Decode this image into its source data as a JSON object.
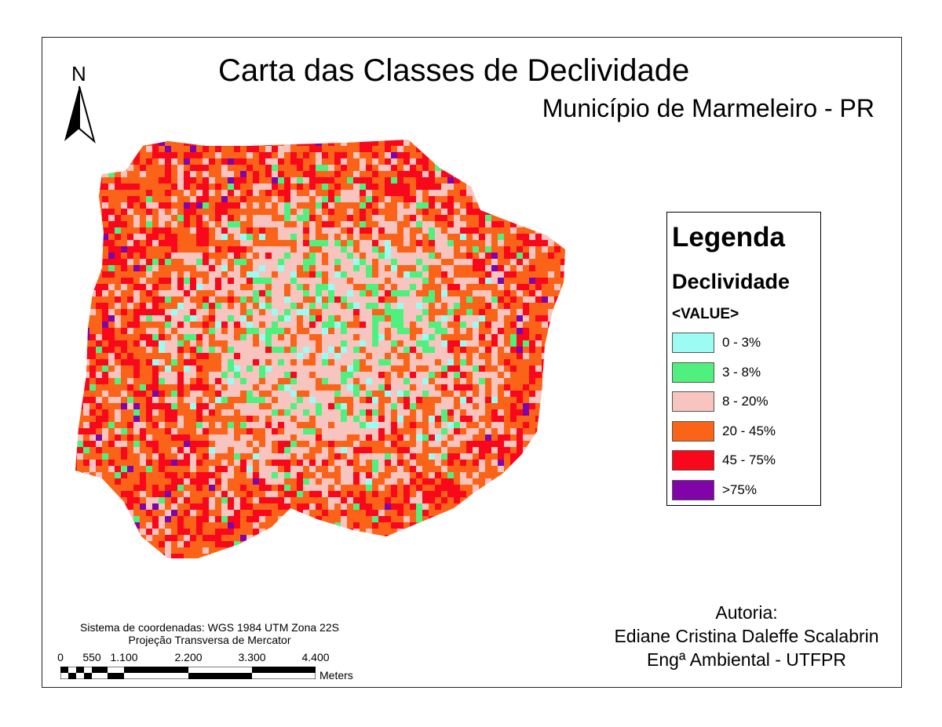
{
  "title": "Carta das Classes de Declividade",
  "subtitle": "Município de Marmeleiro - PR",
  "north_label": "N",
  "legend": {
    "heading": "Legenda",
    "layer": "Declividade",
    "field": "<VALUE>",
    "items": [
      {
        "label": "0 - 3%",
        "color": "#9cfcf4"
      },
      {
        "label": "3 - 8%",
        "color": "#50f07e"
      },
      {
        "label": "8 - 20%",
        "color": "#f8c4c0"
      },
      {
        "label": "20 - 45%",
        "color": "#fb6418"
      },
      {
        "label": "45 - 75%",
        "color": "#f8081a"
      },
      {
        "label": ">75%",
        "color": "#8004a8"
      }
    ]
  },
  "authorship": {
    "heading": "Autoria:",
    "name": "Ediane Cristina Daleffe Scalabrin",
    "role": "Engª Ambiental - UTFPR"
  },
  "coordinate_system": "Sistema de coordenadas: WGS 1984 UTM Zona 22S",
  "projection": "Projeção Transversa de Mercator",
  "scale": {
    "ticks": [
      "0",
      "550",
      "1.100",
      "2.200",
      "3.300",
      "4.400"
    ],
    "unit": "Meters"
  }
}
